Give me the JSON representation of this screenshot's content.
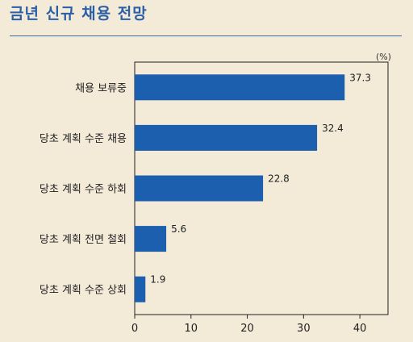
{
  "page": {
    "title": "금년 신규 채용 전망"
  },
  "chart_data": {
    "type": "bar",
    "orientation": "horizontal",
    "title": "금년 신규 채용 전망",
    "unit": "(%)",
    "categories": [
      "채용 보류중",
      "당초 계획 수준 채용",
      "당초 계획 수준 하회",
      "당초 계획 전면 철회",
      "당초 계획 수준 상회"
    ],
    "values": [
      37.3,
      32.4,
      22.8,
      5.6,
      1.9
    ],
    "value_labels": [
      "37.3",
      "32.4",
      "22.8",
      "5.6",
      "1.9"
    ],
    "xlim": [
      0,
      45
    ],
    "xticks": [
      0,
      10,
      20,
      30,
      40
    ],
    "grid": false,
    "colors": {
      "bar": "#1b5fae"
    }
  }
}
